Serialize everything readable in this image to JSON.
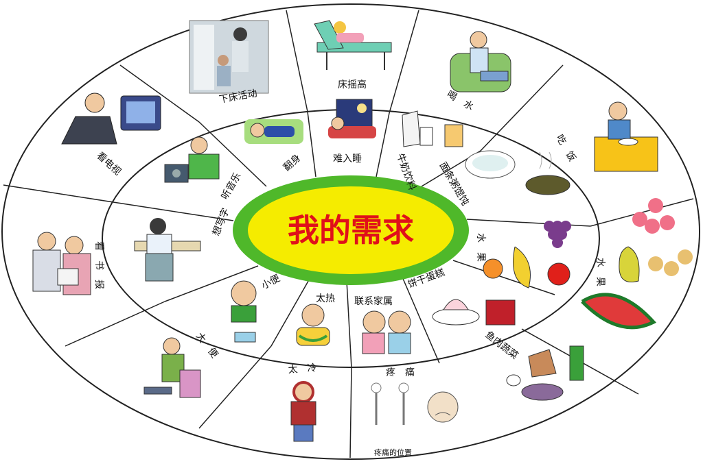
{
  "title": "我的需求",
  "footnote": "疼痛的位置",
  "outer_ring": [
    "下床活动",
    "床摇高",
    "喝　水",
    "吃　饭",
    "水　果",
    "鱼肉蔬菜",
    "疼　痛",
    "太　冷",
    "大　便",
    "看　书　报",
    "看电视"
  ],
  "inner_ring": [
    "难入睡",
    "牛奶饮料",
    "面条粥馄饨",
    "水　果",
    "饼干蛋糕",
    "联系家属",
    "太热",
    "小便",
    "想写字",
    "听音乐",
    "翻身"
  ],
  "colors": {
    "center_fill": "#f5ec00",
    "center_ring": "#4fb82a",
    "title": "#e0101a",
    "lines": "#222222"
  }
}
